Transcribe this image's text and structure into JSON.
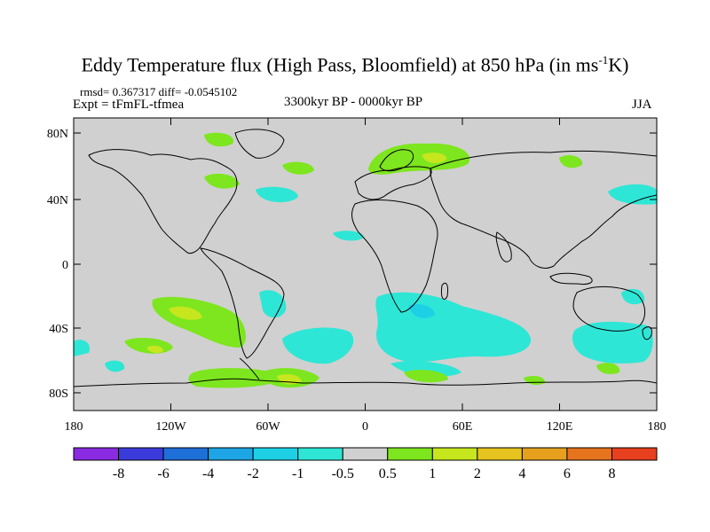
{
  "header": {
    "title": "Eddy Temperature flux (High Pass, Bloomfield) at 850 hPa (in ms",
    "title_sup": "-1",
    "title_end": "K)",
    "rmsd_line": "rmsd= 0.367317  diff= -0.0545102",
    "experiment": "Expt = tFmFL-tfmea",
    "period": "3300kyr BP - 0000kyr BP",
    "season": "JJA"
  },
  "axes": {
    "lat_labels": [
      "80N",
      "40N",
      "0",
      "40S",
      "80S"
    ],
    "lon_labels": [
      "180",
      "120W",
      "60W",
      "0",
      "60E",
      "120E",
      "180"
    ]
  },
  "colorbar": {
    "labels": [
      "-8",
      "-6",
      "-4",
      "-2",
      "-1",
      "-0.5",
      "0.5",
      "1",
      "2",
      "4",
      "6",
      "8"
    ],
    "colors": [
      "#8a2be2",
      "#3b3bdc",
      "#1f6fd8",
      "#1ea5e6",
      "#1ed0e6",
      "#2ee6d6",
      "#d0d0d0",
      "#7de61e",
      "#c6e61e",
      "#e6c31e",
      "#e6a01e",
      "#e6741e",
      "#e6401e"
    ]
  },
  "map_style": {
    "background": "#d0d0d0",
    "coast": "#000000",
    "positive_light": "#7de61e",
    "positive_mid": "#c6e61e",
    "negative_light": "#2ee6d6"
  }
}
